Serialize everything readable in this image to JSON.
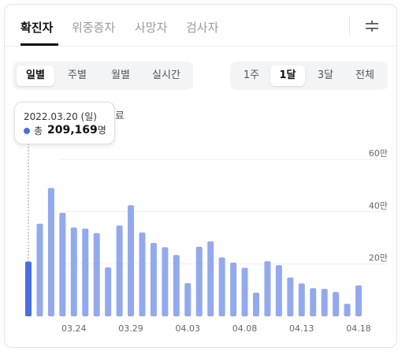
{
  "tabs": [
    "확진자",
    "위중증자",
    "사망자",
    "검사자"
  ],
  "active_tab": 0,
  "period_tabs": [
    "일별",
    "주별",
    "월별",
    "실시간"
  ],
  "active_period_tab": 0,
  "range_tabs": [
    "1주",
    "1달",
    "3달",
    "전체"
  ],
  "active_range_tab": 1,
  "note_text": "자료",
  "tooltip": {
    "date": "2022.03.20 (일)",
    "label": "총",
    "value": "209,169",
    "unit": "명"
  },
  "colors": {
    "bar": "#93a9ee",
    "bar_selected": "#4a6ee0"
  },
  "icons": {
    "filter": "filter-icon"
  },
  "chart_data": {
    "type": "bar",
    "categories": [
      "03.20",
      "03.21",
      "03.22",
      "03.23",
      "03.24",
      "03.25",
      "03.26",
      "03.27",
      "03.28",
      "03.29",
      "03.30",
      "03.31",
      "04.01",
      "04.02",
      "04.03",
      "04.04",
      "04.05",
      "04.06",
      "04.07",
      "04.08",
      "04.09",
      "04.10",
      "04.11",
      "04.12",
      "04.13",
      "04.14",
      "04.15",
      "04.16",
      "04.17",
      "04.18"
    ],
    "values": [
      209169,
      353980,
      490881,
      395598,
      339514,
      335580,
      318130,
      187213,
      347554,
      424641,
      320743,
      280273,
      264171,
      234301,
      127190,
      266135,
      286294,
      224820,
      205333,
      185566,
      90928,
      210716,
      195419,
      148443,
      125846,
      107916,
      104974,
      93001,
      47743,
      118504
    ],
    "selected_index": 0,
    "x_tick_labels": [
      "03.24",
      "03.29",
      "04.03",
      "04.08",
      "04.13",
      "04.18"
    ],
    "y_ticks": [
      200000,
      400000,
      600000
    ],
    "y_tick_labels": [
      "20만",
      "40만",
      "60만"
    ],
    "ylim": [
      0,
      600000
    ],
    "grid": true
  }
}
